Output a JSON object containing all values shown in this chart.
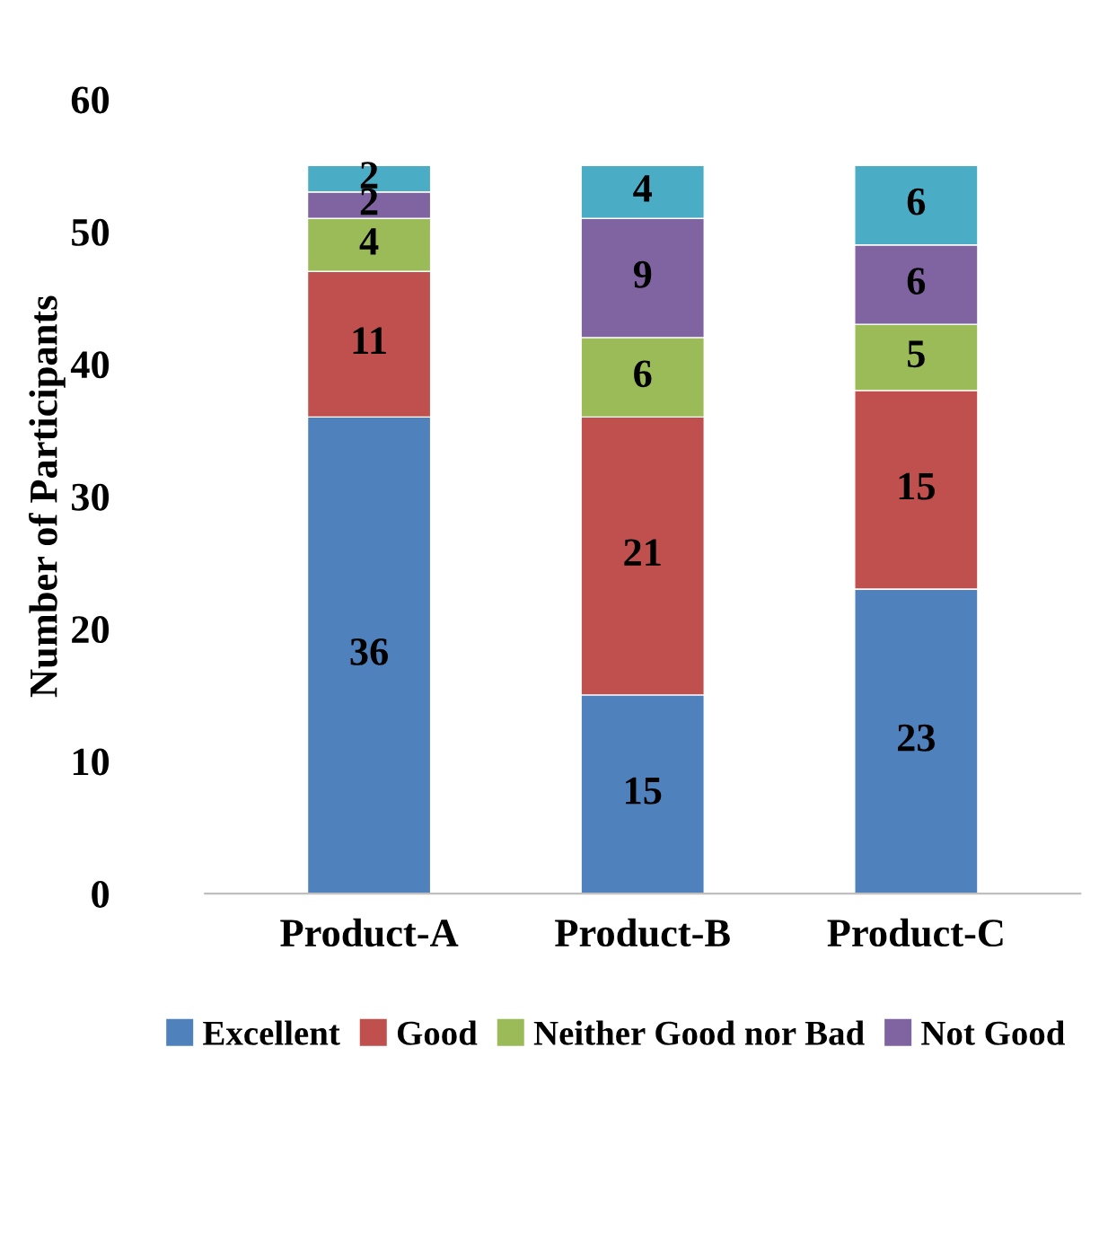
{
  "chart_data": {
    "type": "bar",
    "stacked": true,
    "ylabel": "Number of Participants",
    "categories": [
      "Product-A",
      "Product-B",
      "Product-C"
    ],
    "series": [
      {
        "name": "Excellent",
        "color": "#4f81bd",
        "values": [
          36,
          15,
          23
        ]
      },
      {
        "name": "Good",
        "color": "#c0504d",
        "values": [
          11,
          21,
          15
        ]
      },
      {
        "name": "Neither Good nor Bad",
        "color": "#9bbb59",
        "values": [
          4,
          6,
          5
        ]
      },
      {
        "name": "Not Good",
        "color": "#8064a2",
        "values": [
          2,
          9,
          6
        ]
      },
      {
        "color": "#4bacc6",
        "values": [
          2,
          4,
          6
        ]
      }
    ],
    "ylim": [
      0,
      60
    ],
    "yticks": [
      0,
      10,
      20,
      30,
      40,
      50,
      60
    ],
    "data_labels": true,
    "legend": "bottom",
    "grid": false
  }
}
